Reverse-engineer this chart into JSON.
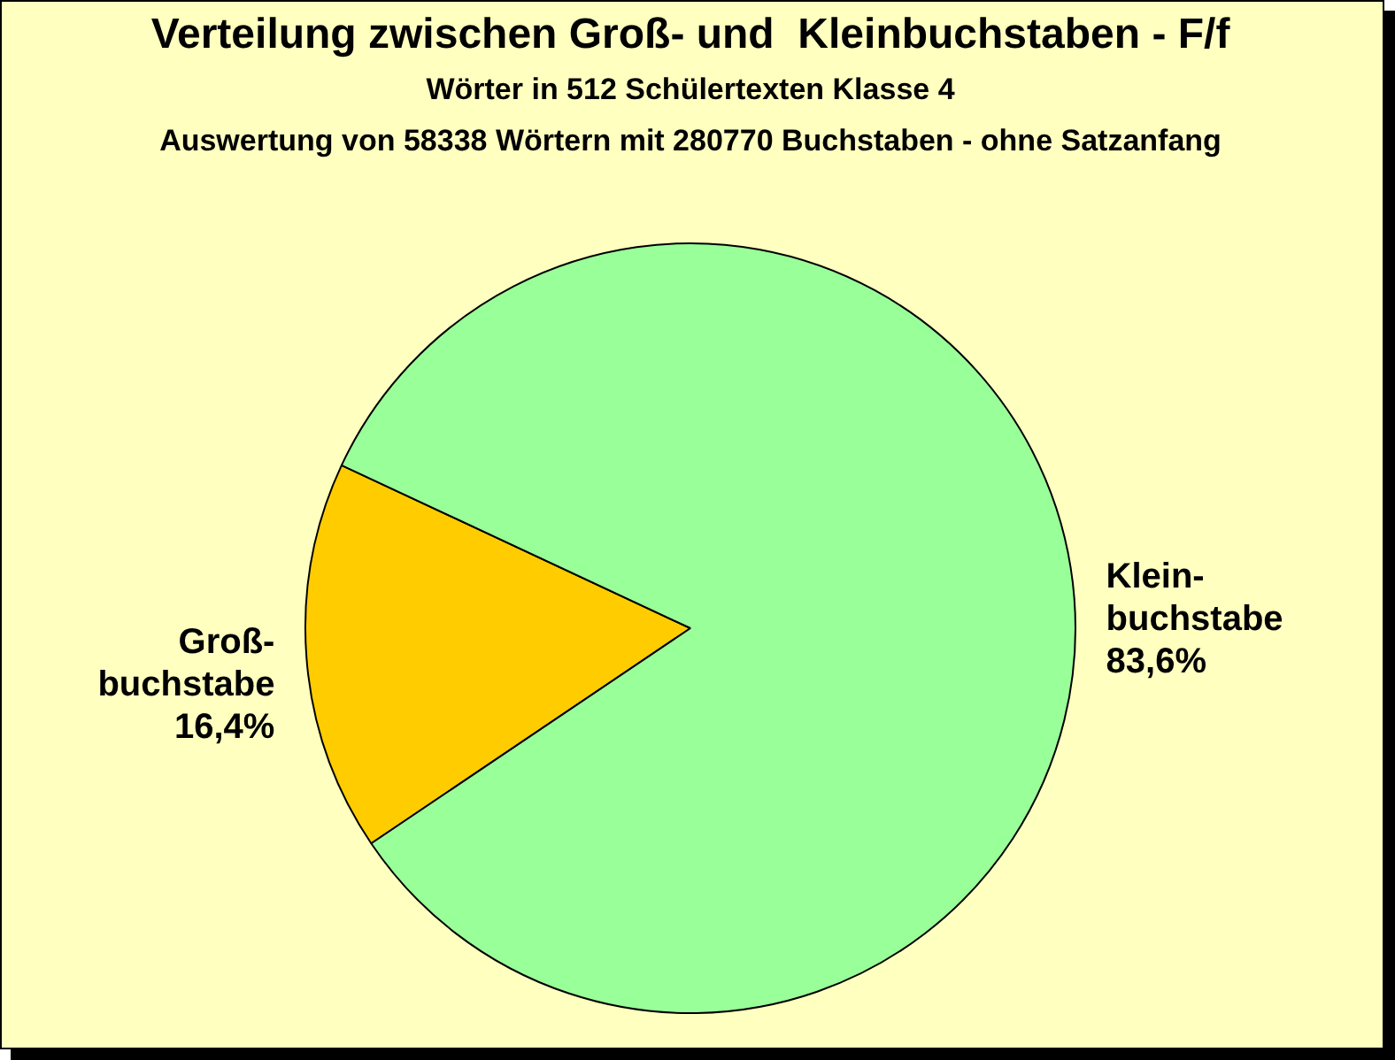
{
  "chart_data": {
    "type": "pie",
    "title": "Verteilung zwischen Groß- und  Kleinbuchstaben - F/f",
    "subtitle": "Wörter in 512 Schülertexten Klasse 4",
    "annotations": [
      "Auswertung von 58338 Wörtern mit 280770 Buchstaben - ohne Satzanfang"
    ],
    "categories": [
      "Groß-\nbuchstabe",
      "Klein-\nbuchstabe"
    ],
    "values": [
      16.4,
      83.6
    ],
    "colors": [
      "#ffcc00",
      "#99ff99"
    ],
    "value_labels": [
      "16,4%",
      "83,6%"
    ],
    "legend": false
  }
}
